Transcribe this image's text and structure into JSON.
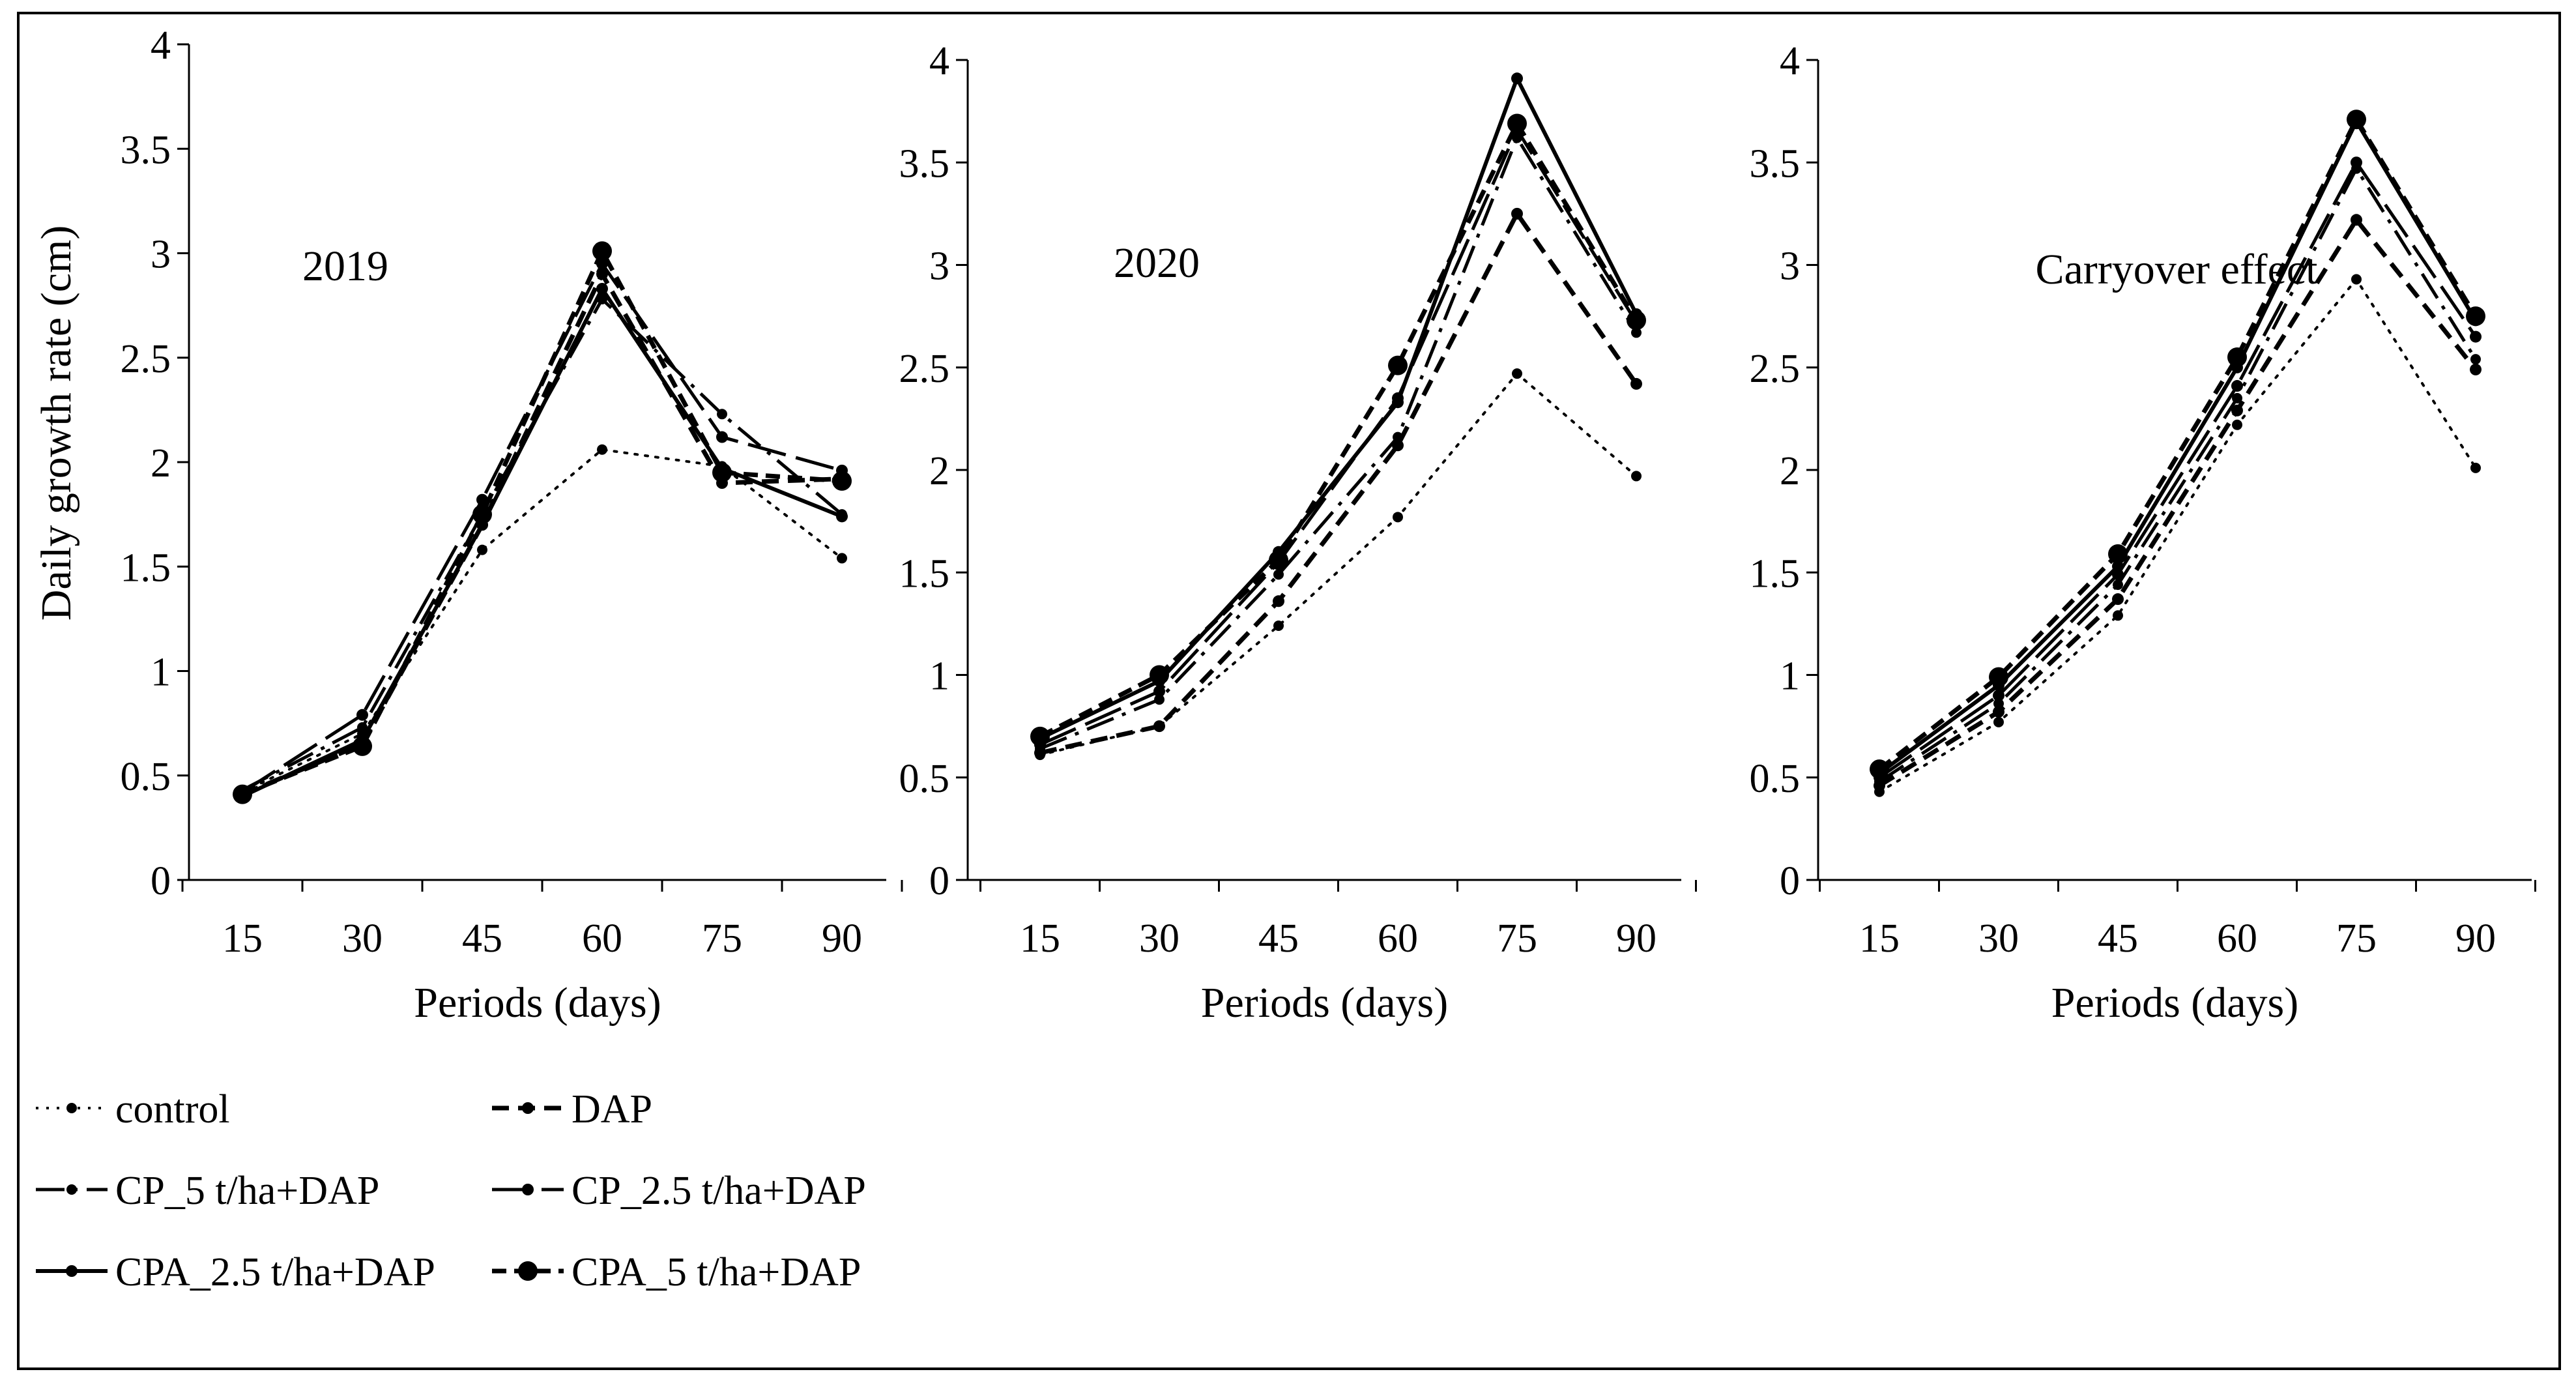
{
  "figure": {
    "ylabel": "Daily growth rate (cm)",
    "xlabel": "Periods  (days)"
  },
  "legend": [
    {
      "name": "control",
      "style": "dotted-small"
    },
    {
      "name": "DAP",
      "style": "dashed-small"
    },
    {
      "name": "CP_5 t/ha+DAP",
      "style": "dashdot-small"
    },
    {
      "name": "CP_2.5 t/ha+DAP",
      "style": "longdash-small"
    },
    {
      "name": "CPA_2.5 t/ha+DAP",
      "style": "solid-small"
    },
    {
      "name": "CPA_5 t/ha+DAP",
      "style": "dashed-large"
    }
  ],
  "chart_data": [
    {
      "type": "line",
      "title": "2019",
      "xlabel": "Periods  (days)",
      "ylabel": "Daily growth rate (cm)",
      "x": [
        15,
        30,
        45,
        60,
        75,
        90
      ],
      "ylim": [
        0,
        4
      ],
      "yticks": [
        "0",
        "0.5",
        "1",
        "1.5",
        "2",
        "2.5",
        "3",
        "3.5",
        "4"
      ],
      "series": [
        {
          "name": "control",
          "values": [
            0.42,
            0.7,
            1.58,
            2.06,
            1.98,
            1.54
          ]
        },
        {
          "name": "DAP",
          "values": [
            0.41,
            0.65,
            1.7,
            2.9,
            1.9,
            1.92
          ]
        },
        {
          "name": "CP_5 t/ha+DAP",
          "values": [
            0.43,
            0.73,
            1.75,
            2.78,
            2.23,
            1.75
          ]
        },
        {
          "name": "CP_2.5 t/ha+DAP",
          "values": [
            0.42,
            0.79,
            1.82,
            2.95,
            2.12,
            1.96
          ]
        },
        {
          "name": "CPA_2.5 t/ha+DAP",
          "values": [
            0.4,
            0.67,
            1.7,
            2.83,
            1.97,
            1.74
          ]
        },
        {
          "name": "CPA_5 t/ha+DAP",
          "values": [
            0.41,
            0.64,
            1.75,
            3.01,
            1.95,
            1.91
          ]
        }
      ]
    },
    {
      "type": "line",
      "title": "2020",
      "xlabel": "Periods (days)",
      "ylabel": "",
      "x": [
        15,
        30,
        45,
        60,
        75,
        90
      ],
      "ylim": [
        0,
        4
      ],
      "yticks": [
        "0",
        "0.5",
        "1",
        "1.5",
        "2",
        "2.5",
        "3",
        "3.5",
        "4"
      ],
      "series": [
        {
          "name": "control",
          "values": [
            0.61,
            0.75,
            1.24,
            1.77,
            2.47,
            1.97
          ]
        },
        {
          "name": "DAP",
          "values": [
            0.62,
            0.75,
            1.36,
            2.12,
            3.25,
            2.42
          ]
        },
        {
          "name": "CP_5 t/ha+DAP",
          "values": [
            0.64,
            0.88,
            1.49,
            2.16,
            3.62,
            2.67
          ]
        },
        {
          "name": "CP_2.5 t/ha+DAP",
          "values": [
            0.66,
            0.92,
            1.55,
            2.35,
            3.66,
            2.72
          ]
        },
        {
          "name": "CPA_2.5 t/ha+DAP",
          "values": [
            0.69,
            0.97,
            1.6,
            2.33,
            3.91,
            2.76
          ]
        },
        {
          "name": "CPA_5 t/ha+DAP",
          "values": [
            0.7,
            1.0,
            1.56,
            2.51,
            3.69,
            2.73
          ]
        }
      ]
    },
    {
      "type": "line",
      "title": "Carryover effect",
      "xlabel": "Periods (days)",
      "ylabel": "",
      "x": [
        15,
        30,
        45,
        60,
        75,
        90
      ],
      "ylim": [
        0,
        4
      ],
      "yticks": [
        "0",
        "0.5",
        "1",
        "1.5",
        "2",
        "2.5",
        "3",
        "3.5",
        "4"
      ],
      "series": [
        {
          "name": "control",
          "values": [
            0.43,
            0.77,
            1.29,
            2.22,
            2.93,
            2.01
          ]
        },
        {
          "name": "DAP",
          "values": [
            0.46,
            0.82,
            1.37,
            2.29,
            3.22,
            2.49
          ]
        },
        {
          "name": "CP_5 t/ha+DAP",
          "values": [
            0.48,
            0.86,
            1.44,
            2.35,
            3.47,
            2.54
          ]
        },
        {
          "name": "CP_2.5 t/ha+DAP",
          "values": [
            0.5,
            0.9,
            1.49,
            2.41,
            3.5,
            2.65
          ]
        },
        {
          "name": "CPA_2.5 t/ha+DAP",
          "values": [
            0.52,
            0.95,
            1.53,
            2.5,
            3.7,
            2.73
          ]
        },
        {
          "name": "CPA_5 t/ha+DAP",
          "values": [
            0.54,
            0.99,
            1.59,
            2.55,
            3.71,
            2.75
          ]
        }
      ]
    }
  ]
}
